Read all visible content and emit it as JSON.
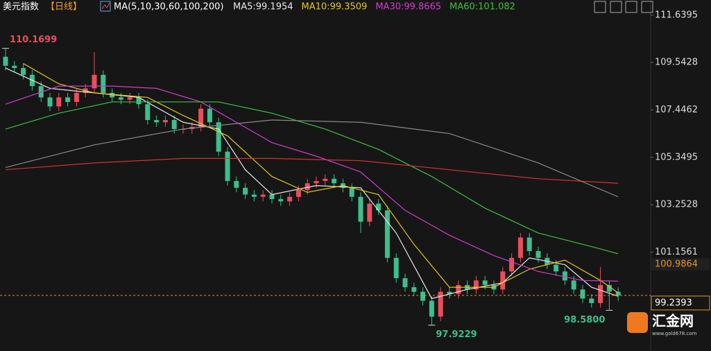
{
  "chart_data": {
    "type": "candlestick",
    "title": "美元指数",
    "period": "【日线】",
    "indicator": "MA(5,10,30,60,100,200)",
    "up_color": "#eb4d5c",
    "down_color": "#3dbf8c",
    "ylim": [
      97.27,
      112.31
    ],
    "yticks": [
      111.6395,
      109.5428,
      107.4462,
      105.3495,
      103.2528,
      101.1561
    ],
    "open": [
      109.8,
      109.4,
      109.3,
      109.0,
      108.5,
      108.0,
      107.6,
      108.0,
      107.8,
      108.2,
      108.4,
      109.0,
      108.2,
      108.0,
      107.9,
      108.0,
      107.7,
      107.0,
      106.9,
      107.0,
      106.6,
      106.6,
      106.7,
      107.5,
      106.9,
      105.6,
      104.3,
      104.0,
      103.7,
      103.6,
      103.7,
      103.5,
      103.4,
      103.6,
      103.9,
      104.2,
      104.3,
      104.4,
      104.2,
      104.0,
      103.6,
      102.5,
      103.3,
      103.0,
      100.9,
      100.0,
      99.6,
      99.4,
      99.0,
      98.3,
      99.4,
      99.3,
      99.7,
      99.5,
      99.9,
      99.7,
      99.5,
      100.3,
      100.9,
      101.8,
      101.2,
      100.9,
      100.6,
      100.3,
      99.9,
      99.5,
      99.1,
      98.9,
      99.7,
      99.4
    ],
    "high": [
      110.1699,
      109.6,
      109.5,
      109.2,
      108.7,
      108.2,
      108.2,
      108.2,
      108.4,
      108.6,
      110.0,
      109.2,
      108.4,
      108.2,
      108.2,
      108.2,
      107.9,
      107.2,
      107.2,
      107.2,
      106.8,
      106.9,
      107.7,
      107.7,
      107.1,
      105.8,
      104.5,
      104.2,
      103.9,
      103.9,
      103.9,
      103.7,
      103.8,
      104.1,
      104.4,
      104.5,
      104.6,
      104.6,
      104.4,
      104.2,
      103.8,
      103.5,
      103.5,
      103.2,
      101.1,
      100.2,
      99.8,
      99.6,
      99.2,
      99.6,
      99.6,
      99.9,
      99.9,
      100.1,
      100.1,
      99.9,
      100.5,
      101.1,
      102.0,
      102.0,
      101.4,
      101.1,
      100.8,
      100.5,
      100.1,
      99.7,
      99.3,
      100.5,
      99.9,
      99.6
    ],
    "low": [
      109.2,
      109.1,
      108.8,
      108.3,
      107.8,
      107.4,
      107.4,
      107.6,
      107.6,
      108.0,
      108.2,
      108.0,
      107.8,
      107.7,
      107.7,
      107.5,
      106.8,
      106.7,
      106.7,
      106.4,
      106.4,
      106.4,
      106.5,
      106.7,
      105.4,
      104.1,
      103.8,
      103.5,
      103.4,
      103.4,
      103.3,
      103.2,
      103.2,
      103.4,
      103.7,
      104.0,
      104.1,
      104.0,
      103.8,
      103.4,
      102.0,
      102.3,
      102.8,
      100.7,
      99.8,
      99.4,
      99.2,
      98.8,
      97.9229,
      98.1,
      99.1,
      99.1,
      99.3,
      99.3,
      99.5,
      99.3,
      99.3,
      100.1,
      100.7,
      101.0,
      100.7,
      100.4,
      100.1,
      99.7,
      99.3,
      98.9,
      98.7,
      98.7,
      98.58,
      99.0
    ],
    "close": [
      109.4,
      109.3,
      109.0,
      108.5,
      108.0,
      107.6,
      108.0,
      107.8,
      108.2,
      108.4,
      109.0,
      108.2,
      108.0,
      107.9,
      108.0,
      107.7,
      107.0,
      106.9,
      107.0,
      106.6,
      106.6,
      106.7,
      107.5,
      106.9,
      105.6,
      104.3,
      104.0,
      103.7,
      103.6,
      103.7,
      103.5,
      103.4,
      103.6,
      103.9,
      104.2,
      104.3,
      104.4,
      104.2,
      104.0,
      103.6,
      102.5,
      103.3,
      103.0,
      100.9,
      100.0,
      99.6,
      99.4,
      99.0,
      98.3,
      99.4,
      99.3,
      99.7,
      99.5,
      99.9,
      99.7,
      99.5,
      100.3,
      100.9,
      101.8,
      101.2,
      100.9,
      100.6,
      100.3,
      99.9,
      99.5,
      99.1,
      98.9,
      99.7,
      99.4,
      99.24
    ],
    "series": [
      {
        "name": "MA5:99.1954",
        "color": "#e8e8e8",
        "x": [
          0,
          5,
          10,
          15,
          20,
          24,
          27,
          30,
          35,
          40,
          44,
          48,
          52,
          56,
          59,
          63,
          66,
          69
        ],
        "values": [
          109.3,
          108.4,
          108.2,
          108.0,
          106.9,
          106.6,
          104.8,
          103.7,
          104.1,
          104.0,
          102.0,
          99.1,
          99.5,
          99.8,
          100.9,
          100.6,
          99.6,
          99.2
        ]
      },
      {
        "name": "MA10:99.3509",
        "color": "#e6c619",
        "x": [
          2,
          6,
          10,
          16,
          20,
          25,
          30,
          34,
          38,
          42,
          46,
          50,
          55,
          59,
          63,
          67,
          69
        ],
        "values": [
          109.5,
          108.6,
          108.2,
          108.0,
          107.2,
          106.3,
          104.5,
          103.8,
          104.1,
          103.7,
          101.5,
          99.6,
          99.6,
          100.4,
          100.8,
          99.9,
          99.35
        ]
      },
      {
        "name": "MA30:99.8665",
        "color": "#d23cd2",
        "x": [
          0,
          6,
          12,
          17,
          22,
          26,
          30,
          35,
          40,
          45,
          50,
          55,
          60,
          65,
          69
        ],
        "values": [
          107.7,
          108.5,
          108.5,
          108.4,
          107.8,
          106.9,
          106.0,
          105.4,
          104.7,
          103.0,
          101.9,
          101.0,
          100.3,
          99.9,
          99.87
        ]
      },
      {
        "name": "MA60:101.082",
        "color": "#3ec23e",
        "x": [
          0,
          6,
          12,
          18,
          24,
          30,
          36,
          42,
          48,
          54,
          60,
          66,
          69
        ],
        "values": [
          106.6,
          107.3,
          107.8,
          107.8,
          107.8,
          107.3,
          106.6,
          105.7,
          104.5,
          103.1,
          102.0,
          101.4,
          101.08
        ]
      },
      {
        "color": "#d83030",
        "x": [
          0,
          10,
          20,
          30,
          40,
          50,
          60,
          69
        ],
        "values": [
          104.8,
          105.1,
          105.3,
          105.3,
          105.2,
          104.8,
          104.4,
          104.2
        ]
      },
      {
        "color": "#8a8a8a",
        "x": [
          0,
          10,
          20,
          30,
          40,
          50,
          60,
          69
        ],
        "values": [
          104.9,
          105.9,
          106.6,
          107.0,
          106.9,
          106.4,
          105.1,
          103.6
        ]
      }
    ],
    "annotations": [
      {
        "value": 110.1699,
        "label": "110.1699",
        "color": "#eb4d5c"
      },
      {
        "value": 97.9229,
        "label": "97.9229",
        "color": "#3dbf8c"
      },
      {
        "value": 98.58,
        "label": "98.5800",
        "color": "#3dbf8c"
      }
    ],
    "marker": {
      "value": 100.9864,
      "label": "100.9864"
    },
    "last_price": {
      "value": 99.2393,
      "label": "99.2393",
      "color": "#e8922c"
    }
  },
  "watermark": {
    "name": "汇金网",
    "url": "www.gold678.com"
  }
}
